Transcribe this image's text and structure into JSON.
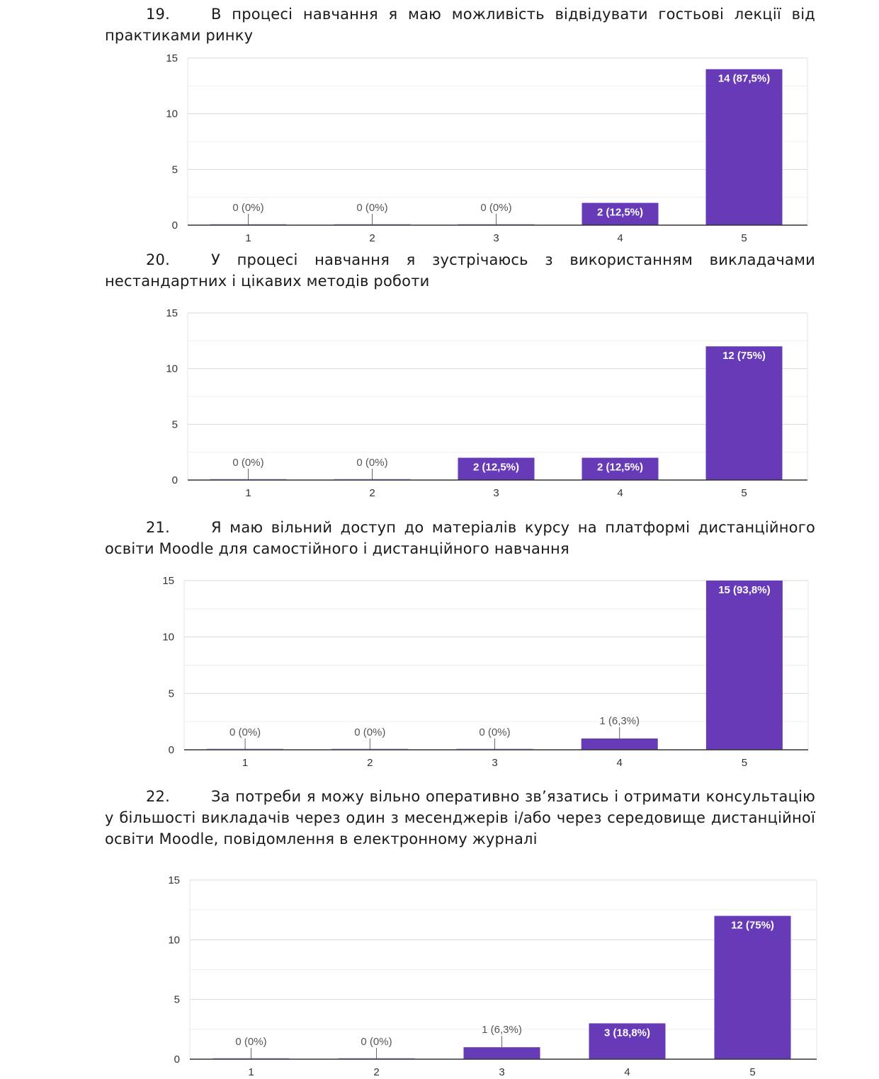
{
  "questions": [
    {
      "number": "19.",
      "text": "В процесі навчання я маю можливість відвідувати гостьові лекції від практиками ринку"
    },
    {
      "number": "20.",
      "text": "У процесі навчання я зустрічаюсь з використанням викладачами нестандартних і цікавих методів роботи"
    },
    {
      "number": "21.",
      "text": "Я маю вільний доступ до матеріалів курсу на платформі дистанційного освіти Moodle для самостійного і дистанційного навчання"
    },
    {
      "number": "22.",
      "text": "За потреби я можу вільно оперативно зв’язатись і отримати консультацію у більшості викладачів через один з месенджерів і/або через середовище дистанційної освіти Moodle, повідомлення в електронному журналі"
    }
  ],
  "colors": {
    "bar": "#673ab7",
    "grid": "#e0e0e0",
    "axis": "#333333",
    "label": "#555555"
  },
  "chart_data": [
    {
      "type": "bar",
      "categories": [
        "1",
        "2",
        "3",
        "4",
        "5"
      ],
      "values": [
        0,
        0,
        0,
        2,
        14
      ],
      "labels": [
        "0 (0%)",
        "0 (0%)",
        "0 (0%)",
        "2 (12,5%)",
        "14 (87,5%)"
      ],
      "yticks": [
        "0",
        "5",
        "10",
        "15"
      ],
      "ylim": [
        0,
        15
      ]
    },
    {
      "type": "bar",
      "categories": [
        "1",
        "2",
        "3",
        "4",
        "5"
      ],
      "values": [
        0,
        0,
        2,
        2,
        12
      ],
      "labels": [
        "0 (0%)",
        "0 (0%)",
        "2 (12,5%)",
        "2 (12,5%)",
        "12 (75%)"
      ],
      "yticks": [
        "0",
        "5",
        "10",
        "15"
      ],
      "ylim": [
        0,
        15
      ]
    },
    {
      "type": "bar",
      "categories": [
        "1",
        "2",
        "3",
        "4",
        "5"
      ],
      "values": [
        0,
        0,
        0,
        1,
        15
      ],
      "labels": [
        "0 (0%)",
        "0 (0%)",
        "0 (0%)",
        "1 (6,3%)",
        "15 (93,8%)"
      ],
      "yticks": [
        "0",
        "5",
        "10",
        "15"
      ],
      "ylim": [
        0,
        15
      ]
    },
    {
      "type": "bar",
      "categories": [
        "1",
        "2",
        "3",
        "4",
        "5"
      ],
      "values": [
        0,
        0,
        1,
        3,
        12
      ],
      "labels": [
        "0 (0%)",
        "0 (0%)",
        "1 (6,3%)",
        "3 (18,8%)",
        "12 (75%)"
      ],
      "yticks": [
        "0",
        "5",
        "10",
        "15"
      ],
      "ylim": [
        0,
        15
      ]
    }
  ]
}
